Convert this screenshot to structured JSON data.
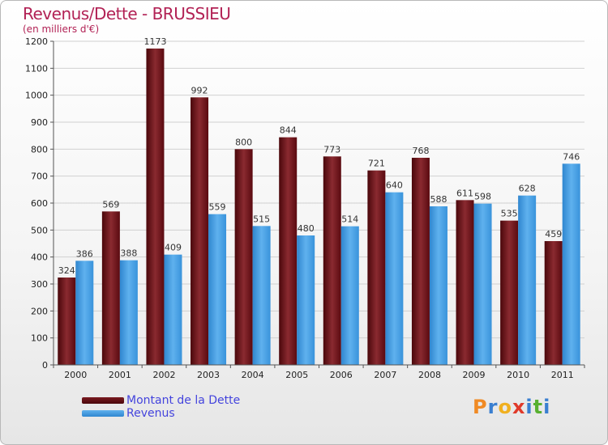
{
  "title": "Revenus/Dette - BRUSSIEU",
  "subtitle": "(en milliers d'€)",
  "colors": {
    "dette": "#6b0f14",
    "revenus": "#3d9be0",
    "title": "#b22255",
    "legend_text": "#4444dd"
  },
  "chart_data": {
    "type": "bar",
    "title": "Revenus/Dette - BRUSSIEU",
    "ylabel": "(en milliers d'€)",
    "xlabel": "",
    "ylim": [
      0,
      1200
    ],
    "yticks": [
      0,
      100,
      200,
      300,
      400,
      500,
      600,
      700,
      800,
      900,
      1000,
      1100,
      1200
    ],
    "categories": [
      "2000",
      "2001",
      "2002",
      "2003",
      "2004",
      "2005",
      "2006",
      "2007",
      "2008",
      "2009",
      "2010",
      "2011"
    ],
    "series": [
      {
        "name": "Montant de la Dette",
        "values": [
          324,
          569,
          1173,
          992,
          800,
          844,
          773,
          721,
          768,
          611,
          535,
          459
        ]
      },
      {
        "name": "Revenus",
        "values": [
          386,
          388,
          409,
          559,
          515,
          480,
          514,
          640,
          588,
          598,
          628,
          746
        ]
      }
    ],
    "grid": true,
    "legend": "bottom-left"
  },
  "legend": {
    "dette_label": "Montant de la Dette",
    "revenus_label": "Revenus"
  },
  "logo": {
    "letters": [
      "P",
      "r",
      "o",
      "x",
      "i",
      "t",
      "i"
    ]
  }
}
